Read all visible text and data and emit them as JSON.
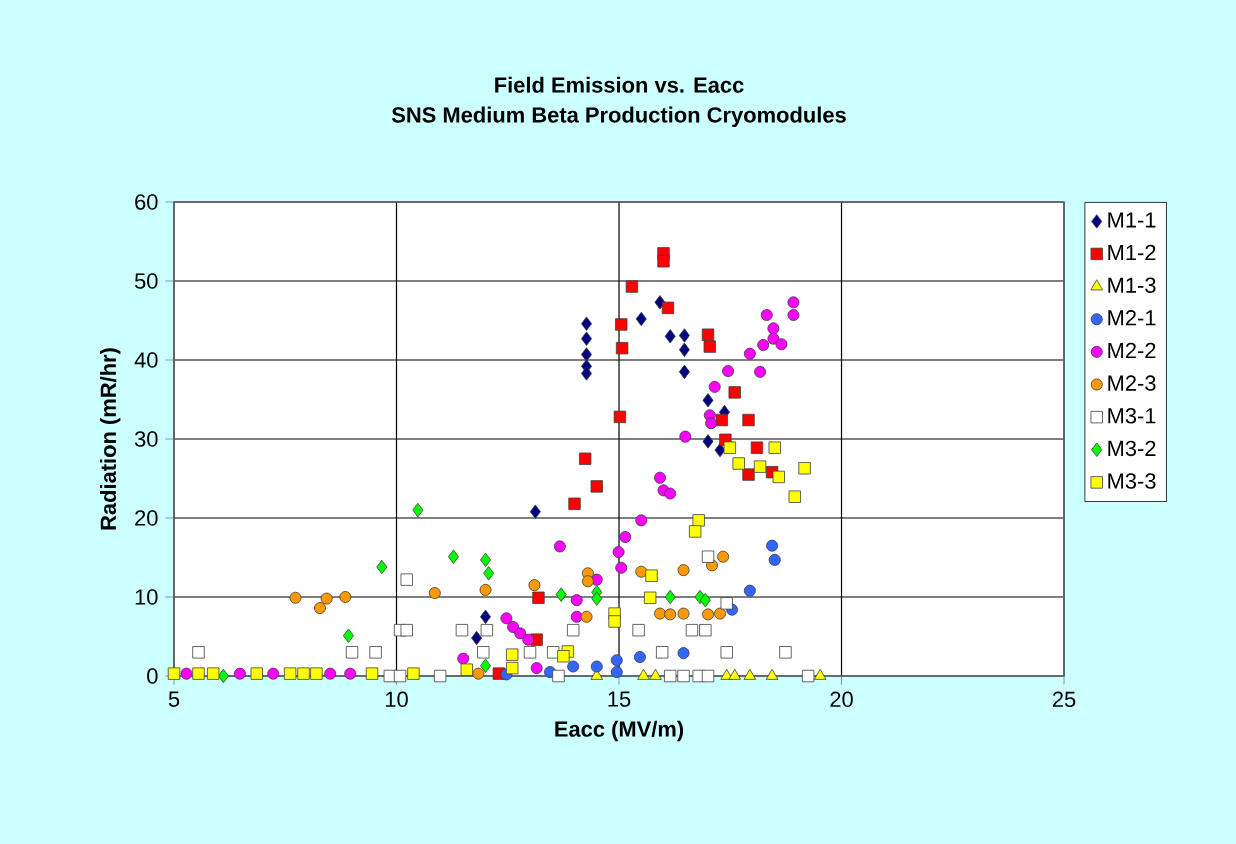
{
  "chart_data": {
    "type": "scatter",
    "title": "Field Emission vs. Eacc",
    "subtitle": "SNS Medium Beta Production Cryomodules",
    "xlabel": "Eacc (MV/m)",
    "ylabel": "Radiation (mR/hr)",
    "xlim": [
      5,
      25
    ],
    "xticks": [
      5,
      10,
      15,
      20,
      25
    ],
    "ylim": [
      0,
      60
    ],
    "yticks": [
      0,
      10,
      20,
      30,
      40,
      50,
      60
    ],
    "grid": true,
    "legend": "right",
    "series": [
      {
        "name": "M1-1",
        "color": "#000080",
        "marker": "diamond",
        "x": [
          13.12,
          12.0,
          11.8,
          14.27,
          14.27,
          14.27,
          14.27,
          14.27,
          15.5,
          15.92,
          16.15,
          16.47,
          16.47,
          16.47,
          17.0,
          17.37,
          17.0,
          17.27
        ],
        "values": [
          20.8,
          7.5,
          4.8,
          44.6,
          42.7,
          40.7,
          39.2,
          38.3,
          45.2,
          47.3,
          43.0,
          43.1,
          41.3,
          38.5,
          34.9,
          33.4,
          29.7,
          28.6
        ]
      },
      {
        "name": "M1-2",
        "color": "#ff0000",
        "marker": "square",
        "x": [
          14.0,
          13.19,
          13.15,
          12.3,
          16.0,
          16.0,
          15.29,
          16.1,
          15.05,
          15.07,
          17.0,
          17.04,
          17.6,
          17.91,
          17.31,
          15.02,
          17.39,
          14.24,
          14.5,
          18.1,
          17.91,
          18.44
        ],
        "values": [
          21.8,
          9.9,
          4.6,
          0.3,
          53.5,
          52.5,
          49.3,
          46.6,
          44.5,
          41.5,
          43.2,
          41.7,
          35.9,
          32.4,
          32.4,
          32.8,
          29.9,
          27.5,
          24.0,
          28.9,
          25.5,
          25.8
        ]
      },
      {
        "name": "M1-3",
        "color": "#ffff00",
        "marker": "triangle",
        "x": [
          14.5,
          15.55,
          15.82,
          17.42,
          17.6,
          17.94,
          18.44,
          19.52
        ],
        "values": [
          0,
          0,
          0,
          0,
          0,
          0,
          0,
          0
        ]
      },
      {
        "name": "M2-1",
        "color": "#3366ff",
        "marker": "circle",
        "x": [
          18.44,
          18.5,
          17.94,
          17.54,
          16.45,
          15.47,
          14.95,
          14.95,
          14.5,
          13.97,
          13.45,
          12.47
        ],
        "values": [
          16.5,
          14.7,
          10.8,
          8.4,
          2.9,
          2.4,
          2.0,
          0.5,
          1.2,
          1.2,
          0.5,
          0.2
        ]
      },
      {
        "name": "M2-2",
        "color": "#ff00ff",
        "marker": "circle",
        "x": [
          18.92,
          18.92,
          18.32,
          18.47,
          18.47,
          18.65,
          18.24,
          17.94,
          17.45,
          18.17,
          17.15,
          17.04,
          17.07,
          16.49,
          15.92,
          16.0,
          16.15,
          15.5,
          15.14,
          14.99,
          15.05,
          13.67,
          14.5,
          14.05,
          14.05,
          12.47,
          12.62,
          12.78,
          12.96,
          11.5,
          13.15,
          5.28,
          6.48,
          7.23,
          8.51,
          8.96
        ],
        "values": [
          47.3,
          45.7,
          45.7,
          44.0,
          42.7,
          42.0,
          41.9,
          40.8,
          38.6,
          38.5,
          36.6,
          33.0,
          32.0,
          30.3,
          25.1,
          23.5,
          23.1,
          19.7,
          17.6,
          15.7,
          13.7,
          16.4,
          12.2,
          9.6,
          7.5,
          7.3,
          6.2,
          5.4,
          4.6,
          2.2,
          1.0,
          0.3,
          0.3,
          0.3,
          0.3,
          0.3
        ]
      },
      {
        "name": "M2-3",
        "color": "#ff9900",
        "marker": "circle",
        "x": [
          7.73,
          8.43,
          8.85,
          8.28,
          10.86,
          12.0,
          13.1,
          11.84,
          17.34,
          17.09,
          16.45,
          15.5,
          14.3,
          14.3,
          14.27,
          15.92,
          16.15,
          16.45,
          17.0,
          17.27
        ],
        "values": [
          9.9,
          9.8,
          10.0,
          8.6,
          10.5,
          10.9,
          11.5,
          0.3,
          15.1,
          14.0,
          13.4,
          13.2,
          13.0,
          12.0,
          7.5,
          7.9,
          7.8,
          7.9,
          7.8,
          7.9
        ]
      },
      {
        "name": "M3-1",
        "color": "#ffffff",
        "marker": "square",
        "x": [
          5.55,
          10.23,
          10.08,
          10.23,
          9.0,
          9.53,
          11.47,
          12.03,
          11.95,
          13.0,
          13.52,
          13.97,
          9.85,
          10.08,
          10.98,
          13.64,
          17.0,
          17.42,
          15.44,
          16.64,
          16.94,
          15.97,
          17.42,
          18.74,
          16.15,
          16.45,
          16.79,
          17.0,
          19.25
        ],
        "values": [
          3.0,
          12.2,
          5.8,
          5.8,
          3.0,
          3.0,
          5.8,
          5.8,
          3.0,
          3.0,
          3.0,
          5.8,
          0,
          0,
          0,
          0,
          15.1,
          9.2,
          5.8,
          5.8,
          5.8,
          3.0,
          3.0,
          3.0,
          0,
          0,
          0,
          0,
          0
        ]
      },
      {
        "name": "M3-2",
        "color": "#00ff00",
        "marker": "diamond",
        "x": [
          10.48,
          9.67,
          11.28,
          12.0,
          12.07,
          8.92,
          13.7,
          12.0,
          6.11,
          14.5,
          14.5,
          16.15,
          16.82,
          16.94
        ],
        "values": [
          21.0,
          13.8,
          15.1,
          14.7,
          13.0,
          5.1,
          10.3,
          1.3,
          0,
          10.6,
          9.8,
          10.0,
          10.0,
          9.6
        ]
      },
      {
        "name": "M3-3",
        "color": "#ffff00",
        "marker": "square",
        "x": [
          5.0,
          5.55,
          5.88,
          6.86,
          7.61,
          7.91,
          8.2,
          9.45,
          10.38,
          11.58,
          12.6,
          12.6,
          13.85,
          13.75,
          17.49,
          17.69,
          18.17,
          18.5,
          18.59,
          19.17,
          18.95,
          16.79,
          16.71,
          15.73,
          15.7,
          14.9,
          14.9
        ],
        "values": [
          0.3,
          0.3,
          0.3,
          0.3,
          0.3,
          0.3,
          0.3,
          0.3,
          0.3,
          0.8,
          2.7,
          1.0,
          3.1,
          2.5,
          28.9,
          26.9,
          26.5,
          28.9,
          25.2,
          26.3,
          22.7,
          19.7,
          18.3,
          12.7,
          9.9,
          7.9,
          6.9
        ]
      }
    ]
  }
}
